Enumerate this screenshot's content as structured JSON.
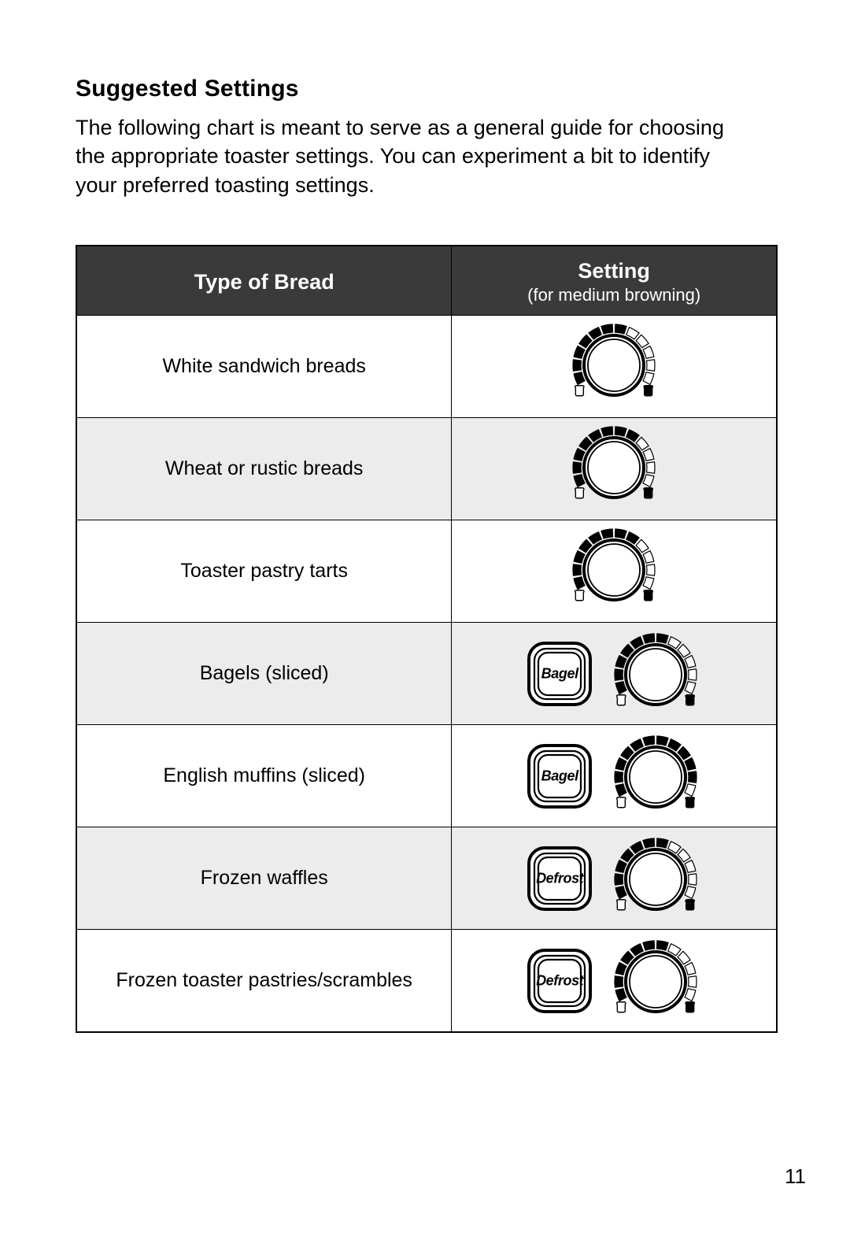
{
  "title": "Suggested Settings",
  "intro": "The following chart is meant to serve as a general guide for choosing the appropriate toaster settings. You can experiment a bit to identify your preferred toasting settings.",
  "page_number": "11",
  "colors": {
    "header_bg": "#3a3a3a",
    "header_fg": "#ffffff",
    "zebra_bg": "#ececec",
    "border": "#000000",
    "page_bg": "#ffffff",
    "text": "#000000"
  },
  "table": {
    "col1_header": "Type of Bread",
    "col2_header_main": "Setting",
    "col2_header_sub": "(for medium browning)",
    "dial": {
      "segments": 12,
      "seg_start_deg": -210,
      "seg_span_deg": 20,
      "seg_outer_r": 52,
      "seg_inner_r": 42,
      "knob_outer_r": 38,
      "knob_inner_r": 33,
      "toast_light_fill": "#ffffff",
      "toast_dark_fill": "#000000"
    },
    "rows": [
      {
        "bread": "White sandwich breads",
        "button": null,
        "dial_filled": 7,
        "zebra": false
      },
      {
        "bread": "Wheat or rustic breads",
        "button": null,
        "dial_filled": 8,
        "zebra": true
      },
      {
        "bread": "Toaster pastry tarts",
        "button": null,
        "dial_filled": 8,
        "zebra": false
      },
      {
        "bread": "Bagels (sliced)",
        "button": "Bagel",
        "dial_filled": 7,
        "zebra": true
      },
      {
        "bread": "English muffins (sliced)",
        "button": "Bagel",
        "dial_filled": 11,
        "zebra": false
      },
      {
        "bread": "Frozen waffles",
        "button": "Defrost",
        "dial_filled": 7,
        "zebra": true
      },
      {
        "bread": "Frozen toaster pastries/scrambles",
        "button": "Defrost",
        "dial_filled": 7,
        "zebra": false
      }
    ]
  }
}
